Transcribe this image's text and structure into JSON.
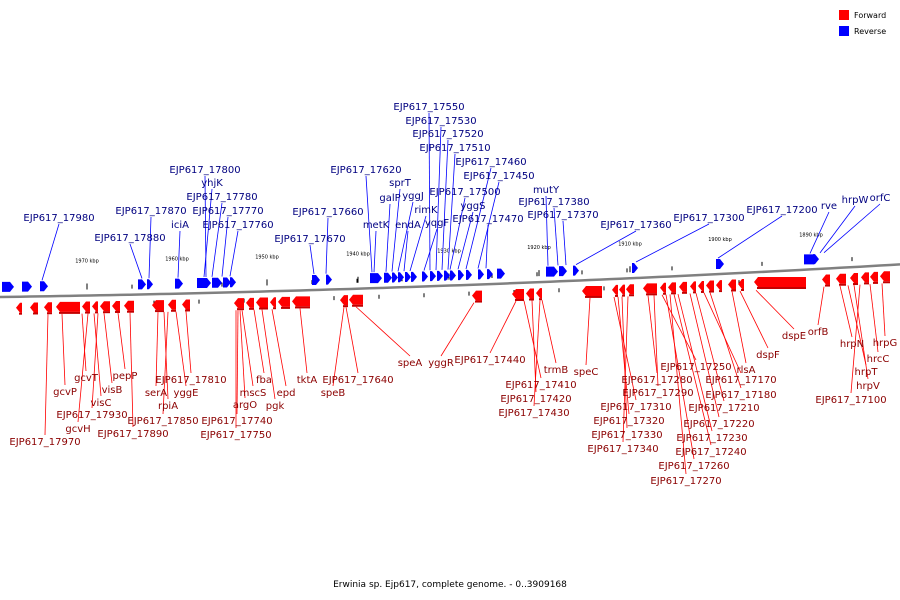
{
  "caption": "Erwinia sp. Ejp617, complete genome. - 0..3909168",
  "legend": [
    {
      "label": "Forward",
      "color": "#ff0000"
    },
    {
      "label": "Reverse",
      "color": "#0000ff"
    }
  ],
  "colors": {
    "forward": "#ff0000",
    "forward_dark": "#c40000",
    "reverse": "#0000ff",
    "reverse_label": "#000080",
    "forward_label": "#8b0000",
    "axis": "#808080"
  },
  "kbp_ticks": [
    "1970 kbp",
    "1960 kbp",
    "1950 kbp",
    "1940 kbp",
    "1930 kbp",
    "1920 kbp",
    "1910 kbp",
    "1900 kbp",
    "1890 kbp"
  ],
  "reverse_labels": [
    "EJP617_17980",
    "EJP617_17880",
    "EJP617_17870",
    "iciA",
    "yhjK",
    "EJP617_17800",
    "EJP617_17780",
    "EJP617_17770",
    "EJP617_17760",
    "EJP617_17670",
    "EJP617_17660",
    "EJP617_17620",
    "metK",
    "galP",
    "sprT",
    "yggJ",
    "endA",
    "rimK",
    "yqgF",
    "EJP617_17550",
    "EJP617_17530",
    "EJP617_17520",
    "EJP617_17510",
    "EJP617_17500",
    "yggS",
    "EJP617_17460",
    "EJP617_17450",
    "EJP617_17470",
    "mutY",
    "EJP617_17380",
    "EJP617_17370",
    "EJP617_17360",
    "EJP617_17300",
    "EJP617_17200",
    "rve",
    "hrpW",
    "orfC"
  ],
  "forward_labels": [
    "EJP617_17970",
    "gcvP",
    "gcvT",
    "gcvH",
    "visC",
    "visB",
    "EJP617_17930",
    "pepP",
    "EJP617_17890",
    "serA",
    "rpiA",
    "EJP617_17850",
    "yggE",
    "EJP617_17810",
    "argO",
    "EJP617_17740",
    "mscS",
    "EJP617_17750",
    "fba",
    "pgk",
    "epd",
    "tktA",
    "speB",
    "EJP617_17640",
    "speA",
    "yggR",
    "EJP617_17440",
    "EJP617_17410",
    "EJP617_17420",
    "EJP617_17430",
    "trmB",
    "speC",
    "EJP617_17310",
    "EJP617_17320",
    "EJP617_17330",
    "EJP617_17340",
    "EJP617_17280",
    "EJP617_17290",
    "EJP617_17250",
    "EJP617_17260",
    "EJP617_17270",
    "EJP617_17240",
    "EJP617_17230",
    "EJP617_17220",
    "EJP617_17210",
    "EJP617_17170",
    "EJP617_17180",
    "rlsA",
    "dspF",
    "dspE",
    "orfB",
    "hrpN",
    "hrpT",
    "hrpV",
    "EJP617_17100",
    "hrcC",
    "hrpG"
  ]
}
